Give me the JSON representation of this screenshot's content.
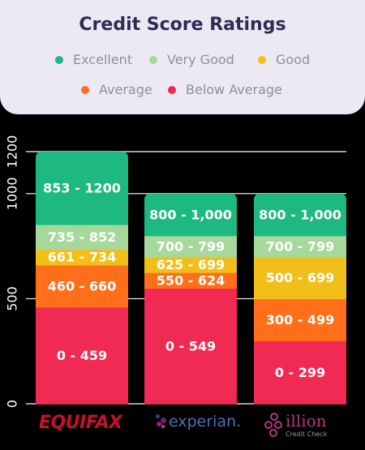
{
  "chart_data": {
    "type": "bar",
    "stacked": true,
    "title": "Credit Score Ratings",
    "legend": [
      {
        "name": "Excellent",
        "color": "#1DB980"
      },
      {
        "name": "Very Good",
        "color": "#A6D89C"
      },
      {
        "name": "Good",
        "color": "#F2BE1A"
      },
      {
        "name": "Average",
        "color": "#FF6F1A"
      },
      {
        "name": "Below Average",
        "color": "#F02A52"
      }
    ],
    "ylim": [
      0,
      1200
    ],
    "yticks": [
      0,
      500,
      1000,
      1200
    ],
    "ytick_labels": [
      "0",
      "500",
      "1000",
      "1200"
    ],
    "grid": true,
    "categories": [
      "Equifax",
      "Experian",
      "illion"
    ],
    "bars": [
      {
        "segments": [
          {
            "from": 0,
            "to": 459,
            "label": "0 - 459",
            "rating": "Below Average"
          },
          {
            "from": 460,
            "to": 660,
            "label": "460 - 660",
            "rating": "Average"
          },
          {
            "from": 661,
            "to": 734,
            "label": "661 - 734",
            "rating": "Good"
          },
          {
            "from": 735,
            "to": 852,
            "label": "735 - 852",
            "rating": "Very Good"
          },
          {
            "from": 853,
            "to": 1200,
            "label": "853 - 1200",
            "rating": "Excellent"
          }
        ]
      },
      {
        "segments": [
          {
            "from": 0,
            "to": 549,
            "label": "0 - 549",
            "rating": "Below Average"
          },
          {
            "from": 550,
            "to": 624,
            "label": "550 - 624",
            "rating": "Average"
          },
          {
            "from": 625,
            "to": 699,
            "label": "625 - 699",
            "rating": "Good"
          },
          {
            "from": 700,
            "to": 799,
            "label": "700 - 799",
            "rating": "Very Good"
          },
          {
            "from": 800,
            "to": 1000,
            "label": "800 - 1,000",
            "rating": "Excellent"
          }
        ]
      },
      {
        "segments": [
          {
            "from": 0,
            "to": 299,
            "label": "0 - 299",
            "rating": "Below Average"
          },
          {
            "from": 300,
            "to": 499,
            "label": "300 - 499",
            "rating": "Average"
          },
          {
            "from": 500,
            "to": 699,
            "label": "500 - 699",
            "rating": "Good"
          },
          {
            "from": 700,
            "to": 799,
            "label": "700 - 799",
            "rating": "Very Good"
          },
          {
            "from": 800,
            "to": 1000,
            "label": "800 - 1,000",
            "rating": "Excellent"
          }
        ]
      }
    ]
  },
  "logos": {
    "equifax": "EQUIFAX",
    "experian": "experian.",
    "illion": "illion",
    "illion_sub": "Credit Check"
  },
  "colors": {
    "header_bg": "#ECE9F5",
    "title": "#2B2D52",
    "legend_text": "#8E8EA2",
    "background": "#000000",
    "grid": "#FFFFFF"
  }
}
